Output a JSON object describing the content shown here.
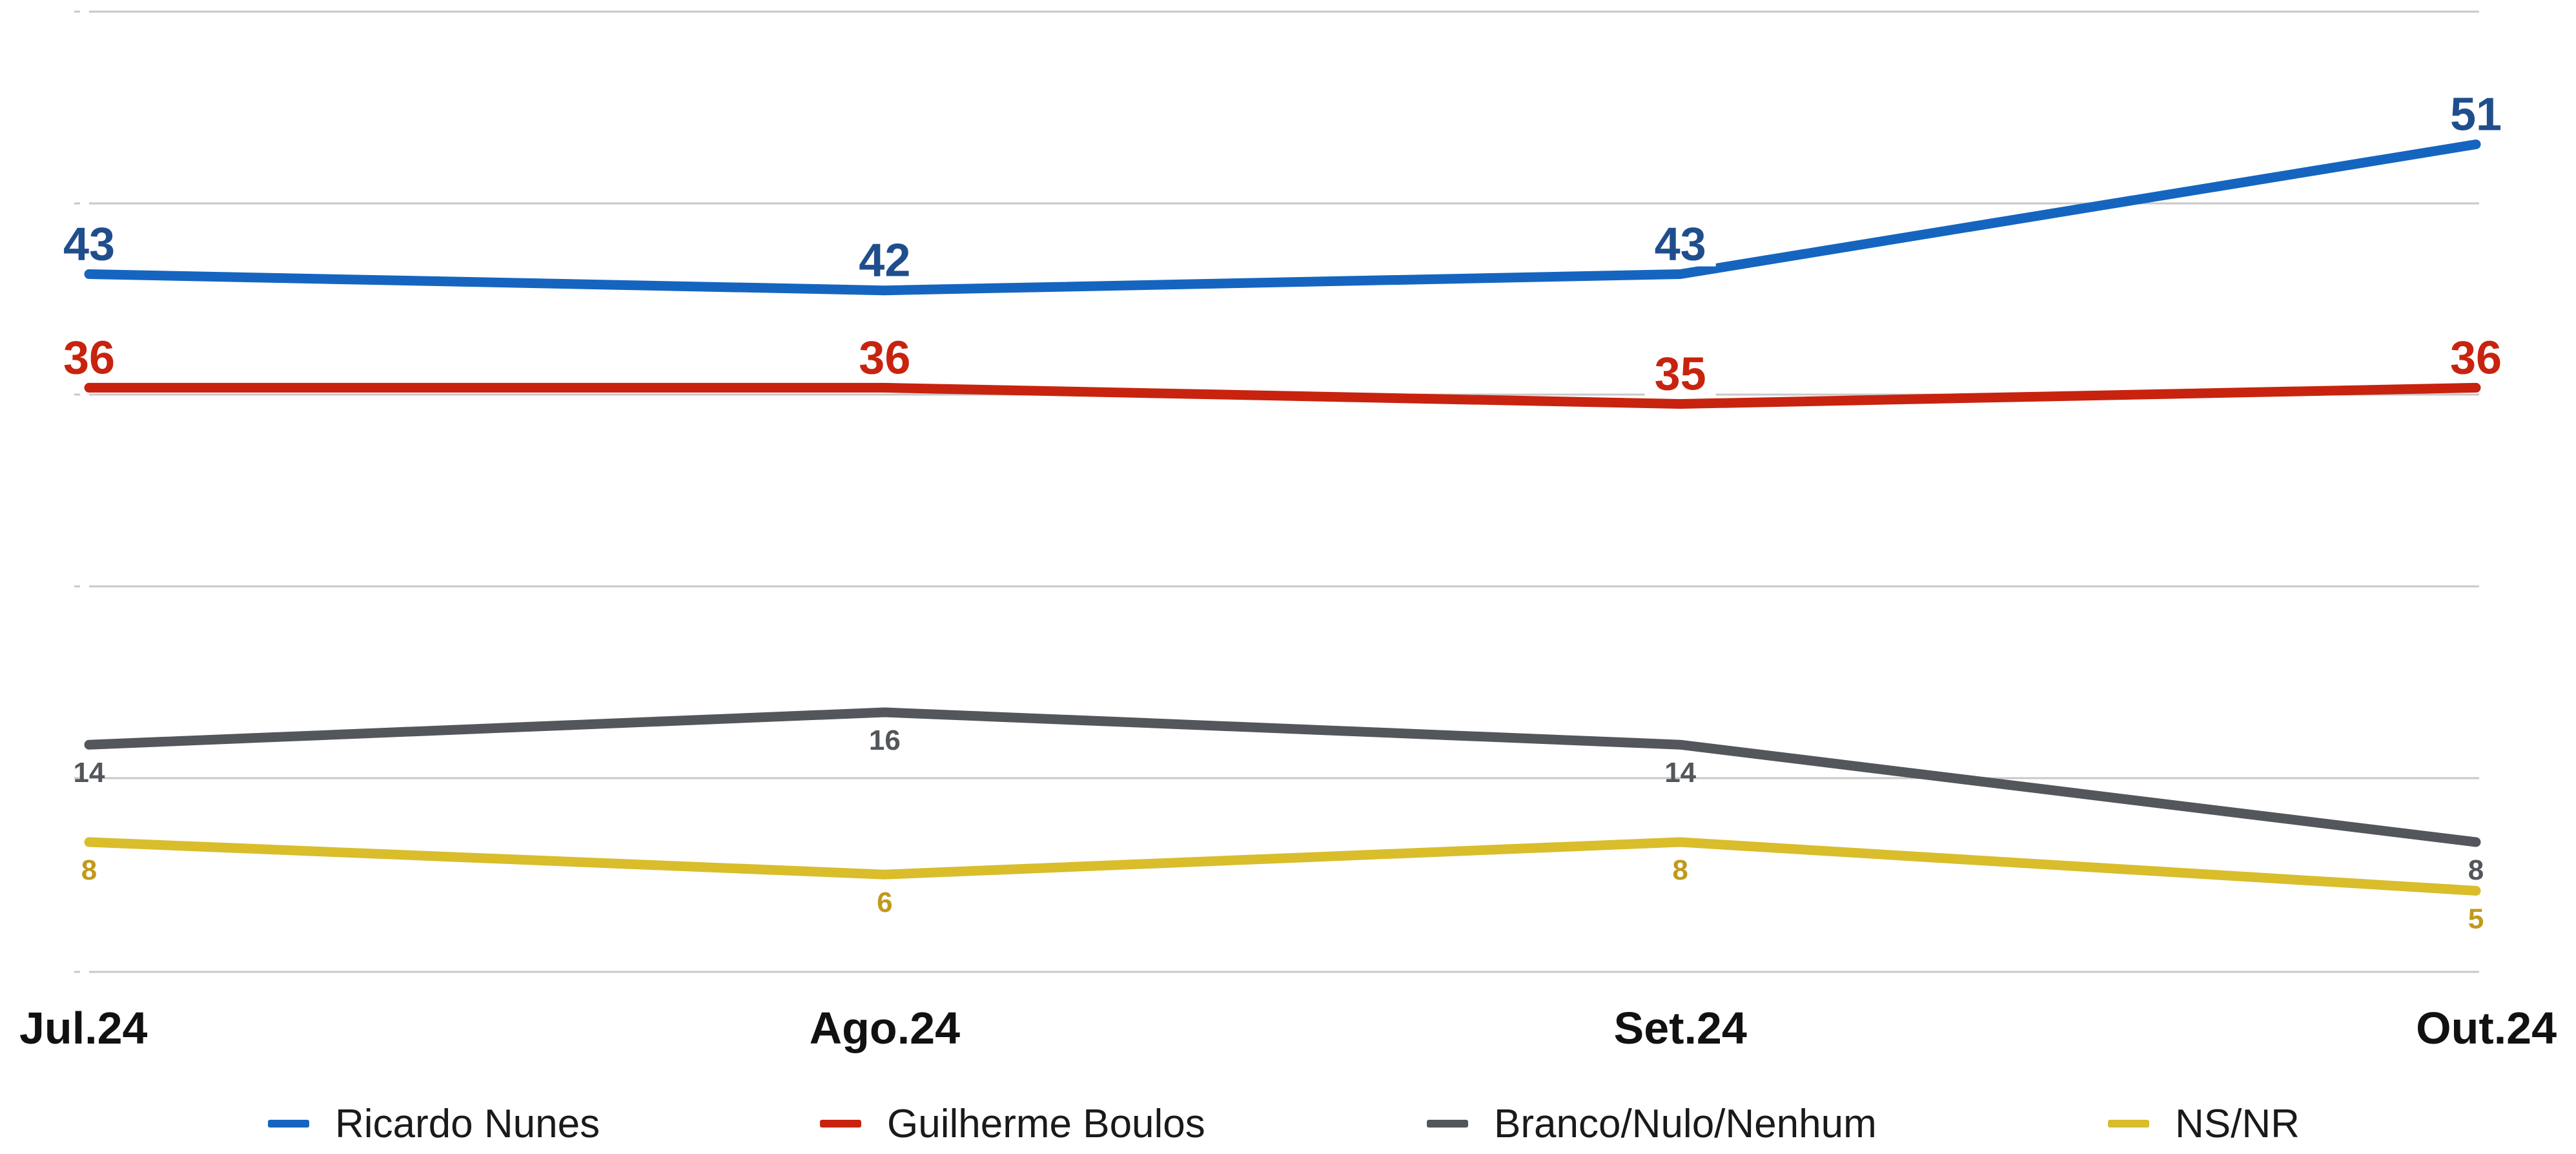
{
  "chart_data": {
    "type": "line",
    "categories": [
      "Jul.24",
      "Ago.24",
      "Set.24",
      "Out.24"
    ],
    "ylim": [
      0,
      55
    ],
    "grid": true,
    "legend_position": "bottom",
    "series": [
      {
        "name": "Ricardo Nunes",
        "values": [
          43,
          42,
          43,
          51
        ],
        "color": "#1565C0",
        "label_color": "#1F4E8C",
        "label_style": "large",
        "label_position": "above"
      },
      {
        "name": "Guilherme Boulos",
        "values": [
          36,
          36,
          35,
          36
        ],
        "color": "#C8230F",
        "label_color": "#C8230F",
        "label_style": "large",
        "label_position": "above"
      },
      {
        "name": "Branco/Nulo/Nenhum",
        "values": [
          14,
          16,
          14,
          8
        ],
        "color": "#53565B",
        "label_color": "#53565B",
        "label_style": "small",
        "label_position": "below"
      },
      {
        "name": "NS/NR",
        "values": [
          8,
          6,
          8,
          5
        ],
        "color": "#D9BD2B",
        "label_color": "#C19A1B",
        "label_style": "small",
        "label_position": "below"
      }
    ]
  }
}
